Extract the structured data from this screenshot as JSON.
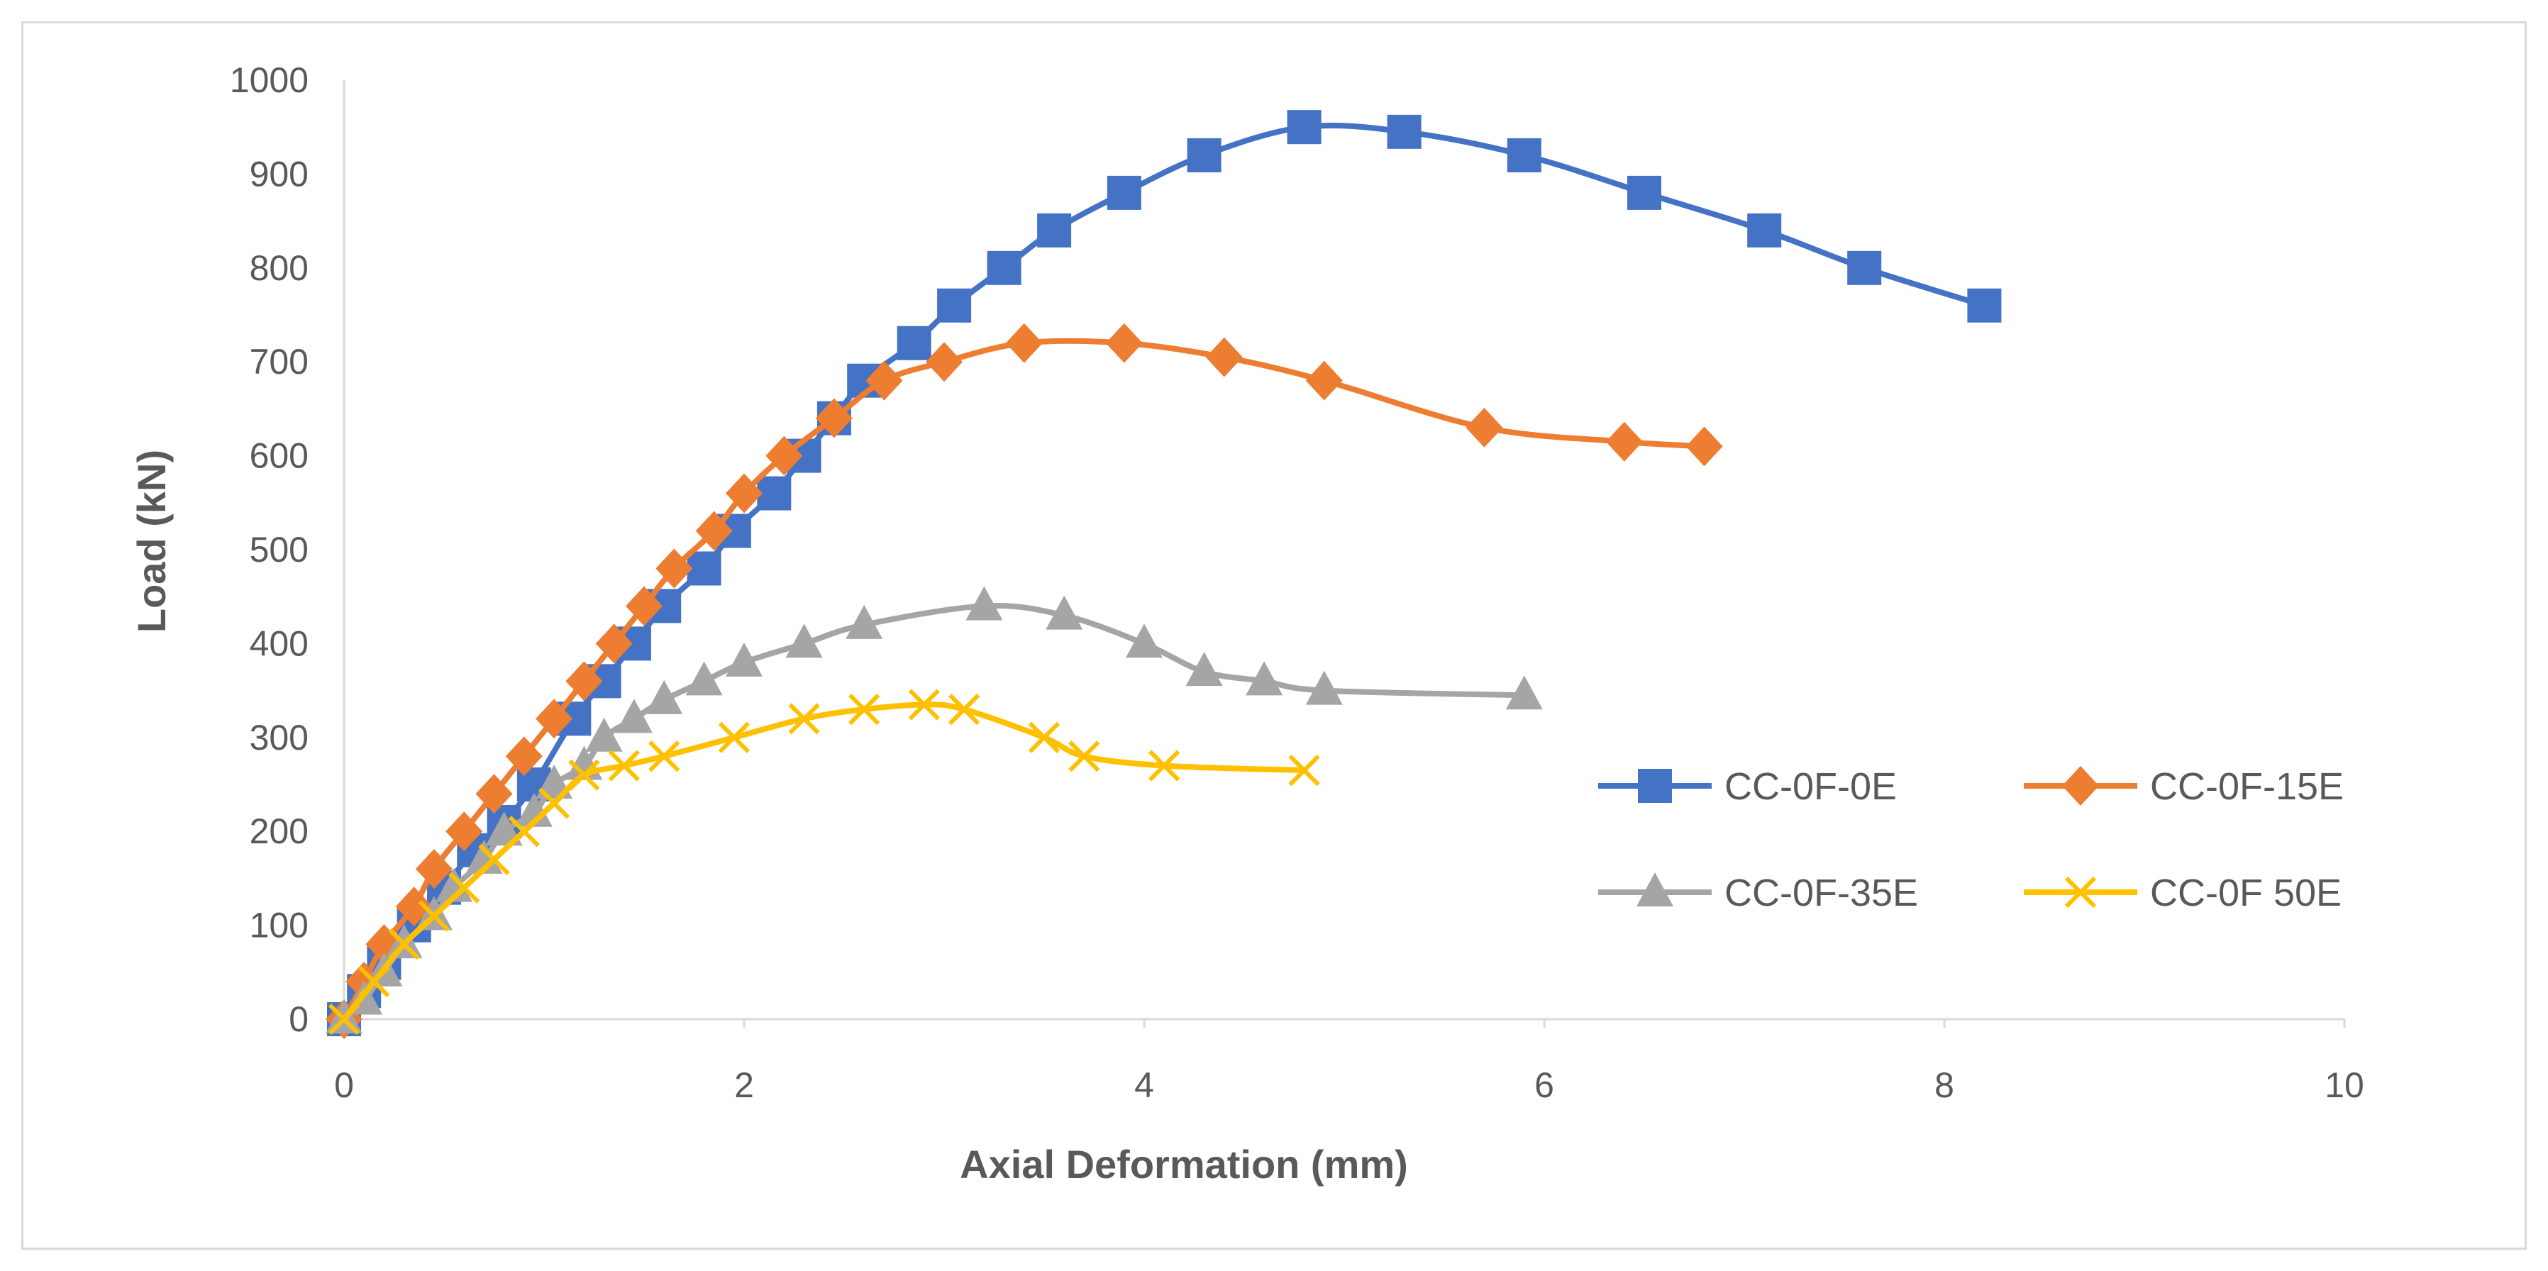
{
  "chart_data": {
    "type": "line",
    "title": "",
    "xlabel": "Axial Deformation (mm)",
    "ylabel": "Load (kN)",
    "xlim": [
      0,
      10
    ],
    "ylim": [
      0,
      1000
    ],
    "xticks": [
      "0",
      "2",
      "4",
      "6",
      "8",
      "10"
    ],
    "yticks": [
      "0",
      "100",
      "200",
      "300",
      "400",
      "500",
      "600",
      "700",
      "800",
      "900",
      "1000"
    ],
    "grid": false,
    "legend_position": "bottom-right",
    "series": [
      {
        "name": "CC-0F-0E",
        "color": "#4472C4",
        "marker": "square",
        "x": [
          0,
          0.1,
          0.2,
          0.35,
          0.5,
          0.65,
          0.8,
          0.95,
          1.15,
          1.3,
          1.45,
          1.6,
          1.8,
          1.95,
          2.15,
          2.3,
          2.45,
          2.6,
          2.85,
          3.05,
          3.3,
          3.55,
          3.9,
          4.3,
          4.8,
          5.3,
          5.9,
          6.5,
          7.1,
          7.6,
          8.2
        ],
        "y": [
          0,
          30,
          60,
          100,
          140,
          180,
          210,
          250,
          320,
          360,
          400,
          440,
          480,
          520,
          560,
          600,
          640,
          680,
          720,
          760,
          800,
          840,
          880,
          920,
          950,
          945,
          920,
          880,
          840,
          800,
          760
        ]
      },
      {
        "name": "CC-0F-15E",
        "color": "#ED7D31",
        "marker": "diamond",
        "x": [
          0,
          0.1,
          0.2,
          0.35,
          0.45,
          0.6,
          0.75,
          0.9,
          1.05,
          1.2,
          1.35,
          1.5,
          1.65,
          1.85,
          2.0,
          2.2,
          2.45,
          2.7,
          3.0,
          3.4,
          3.9,
          4.4,
          4.9,
          5.7,
          6.4,
          6.8
        ],
        "y": [
          0,
          40,
          80,
          120,
          160,
          200,
          240,
          280,
          320,
          360,
          400,
          440,
          480,
          520,
          560,
          600,
          640,
          680,
          700,
          720,
          720,
          705,
          680,
          630,
          615,
          610
        ]
      },
      {
        "name": "CC-0F-35E",
        "color": "#A5A5A5",
        "marker": "triangle",
        "x": [
          0,
          0.1,
          0.2,
          0.3,
          0.45,
          0.55,
          0.7,
          0.8,
          0.95,
          1.05,
          1.2,
          1.3,
          1.45,
          1.6,
          1.8,
          2.0,
          2.3,
          2.6,
          3.2,
          3.6,
          4.0,
          4.3,
          4.6,
          4.9,
          5.9
        ],
        "y": [
          0,
          20,
          50,
          80,
          110,
          140,
          170,
          200,
          220,
          250,
          270,
          300,
          320,
          340,
          360,
          380,
          400,
          420,
          440,
          430,
          400,
          370,
          360,
          350,
          345
        ]
      },
      {
        "name": "CC-0F 50E",
        "color": "#FFC000",
        "marker": "x",
        "x": [
          0,
          0.15,
          0.3,
          0.45,
          0.6,
          0.75,
          0.9,
          1.05,
          1.2,
          1.4,
          1.6,
          1.95,
          2.3,
          2.6,
          2.9,
          3.1,
          3.5,
          3.7,
          4.1,
          4.8
        ],
        "y": [
          0,
          40,
          80,
          110,
          140,
          170,
          200,
          230,
          260,
          270,
          280,
          300,
          320,
          330,
          335,
          330,
          300,
          280,
          270,
          265
        ]
      }
    ]
  }
}
